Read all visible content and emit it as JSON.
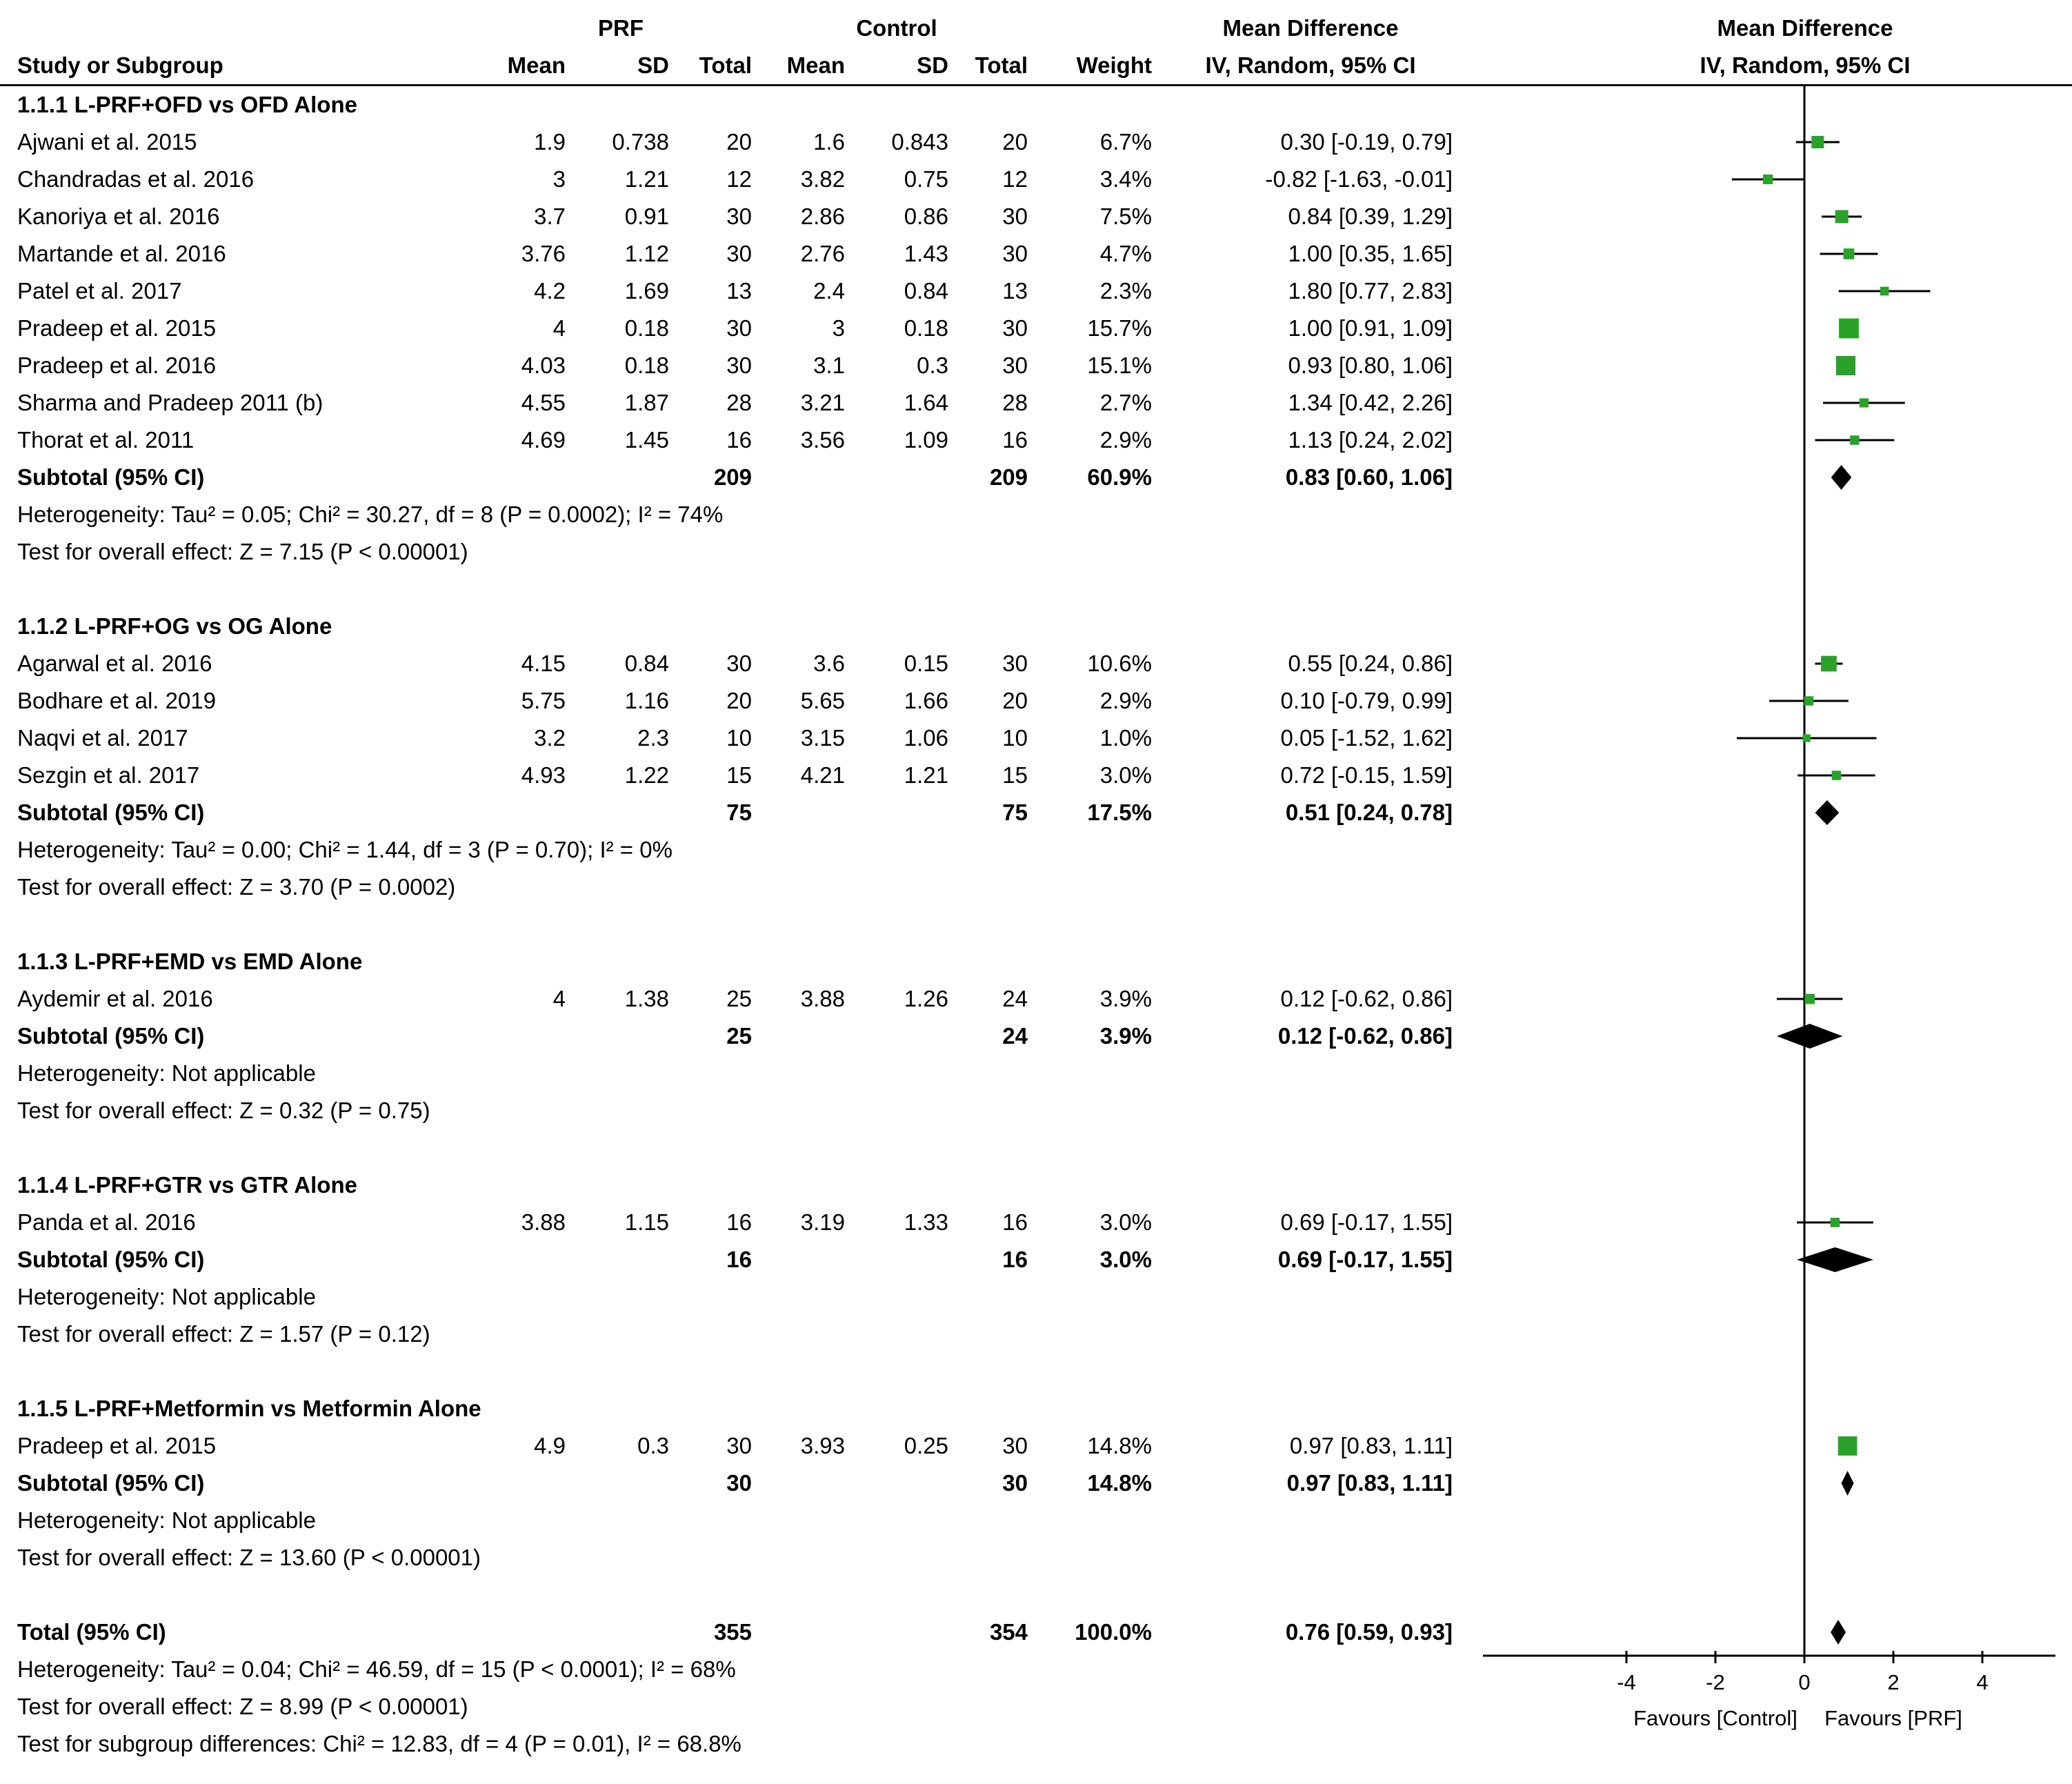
{
  "header": {
    "prf": "PRF",
    "control": "Control",
    "study": "Study or Subgroup",
    "mean": "Mean",
    "sd": "SD",
    "total": "Total",
    "weight": "Weight",
    "md_line1": "Mean Difference",
    "md_line2": "IV, Random, 95% CI"
  },
  "chart_data": {
    "type": "forest",
    "effect_measure": "Mean Difference",
    "method": "IV, Random, 95% CI",
    "marker_color": "#2aa22a",
    "diamond_color": "#000000",
    "xlim": [
      -5,
      5.6
    ],
    "axis": {
      "tick_values": [
        -4,
        -2,
        0,
        2,
        4
      ],
      "tick_labels": [
        "-4",
        "-2",
        "0",
        "2",
        "4"
      ],
      "favours_left": "Favours [Control]",
      "favours_right": "Favours [PRF]"
    },
    "groups": [
      {
        "label": "1.1.1 L-PRF+OFD vs OFD Alone",
        "studies": [
          {
            "name": "Ajwani et al. 2015",
            "prf_mean": "1.9",
            "prf_sd": "0.738",
            "prf_total": "20",
            "ctl_mean": "1.6",
            "ctl_sd": "0.843",
            "ctl_total": "20",
            "weight": "6.7%",
            "ci_text": "0.30 [-0.19, 0.79]",
            "est": 0.3,
            "lo": -0.19,
            "hi": 0.79,
            "w": 6.7
          },
          {
            "name": "Chandradas et al. 2016",
            "prf_mean": "3",
            "prf_sd": "1.21",
            "prf_total": "12",
            "ctl_mean": "3.82",
            "ctl_sd": "0.75",
            "ctl_total": "12",
            "weight": "3.4%",
            "ci_text": "-0.82 [-1.63, -0.01]",
            "est": -0.82,
            "lo": -1.63,
            "hi": -0.01,
            "w": 3.4
          },
          {
            "name": "Kanoriya et al. 2016",
            "prf_mean": "3.7",
            "prf_sd": "0.91",
            "prf_total": "30",
            "ctl_mean": "2.86",
            "ctl_sd": "0.86",
            "ctl_total": "30",
            "weight": "7.5%",
            "ci_text": "0.84 [0.39, 1.29]",
            "est": 0.84,
            "lo": 0.39,
            "hi": 1.29,
            "w": 7.5
          },
          {
            "name": "Martande et al. 2016",
            "prf_mean": "3.76",
            "prf_sd": "1.12",
            "prf_total": "30",
            "ctl_mean": "2.76",
            "ctl_sd": "1.43",
            "ctl_total": "30",
            "weight": "4.7%",
            "ci_text": "1.00 [0.35, 1.65]",
            "est": 1.0,
            "lo": 0.35,
            "hi": 1.65,
            "w": 4.7
          },
          {
            "name": "Patel et al. 2017",
            "prf_mean": "4.2",
            "prf_sd": "1.69",
            "prf_total": "13",
            "ctl_mean": "2.4",
            "ctl_sd": "0.84",
            "ctl_total": "13",
            "weight": "2.3%",
            "ci_text": "1.80 [0.77, 2.83]",
            "est": 1.8,
            "lo": 0.77,
            "hi": 2.83,
            "w": 2.3
          },
          {
            "name": "Pradeep et al. 2015",
            "prf_mean": "4",
            "prf_sd": "0.18",
            "prf_total": "30",
            "ctl_mean": "3",
            "ctl_sd": "0.18",
            "ctl_total": "30",
            "weight": "15.7%",
            "ci_text": "1.00 [0.91, 1.09]",
            "est": 1.0,
            "lo": 0.91,
            "hi": 1.09,
            "w": 15.7
          },
          {
            "name": "Pradeep et al. 2016",
            "prf_mean": "4.03",
            "prf_sd": "0.18",
            "prf_total": "30",
            "ctl_mean": "3.1",
            "ctl_sd": "0.3",
            "ctl_total": "30",
            "weight": "15.1%",
            "ci_text": "0.93 [0.80, 1.06]",
            "est": 0.93,
            "lo": 0.8,
            "hi": 1.06,
            "w": 15.1
          },
          {
            "name": "Sharma and Pradeep 2011 (b)",
            "prf_mean": "4.55",
            "prf_sd": "1.87",
            "prf_total": "28",
            "ctl_mean": "3.21",
            "ctl_sd": "1.64",
            "ctl_total": "28",
            "weight": "2.7%",
            "ci_text": "1.34 [0.42, 2.26]",
            "est": 1.34,
            "lo": 0.42,
            "hi": 2.26,
            "w": 2.7
          },
          {
            "name": "Thorat et al. 2011",
            "prf_mean": "4.69",
            "prf_sd": "1.45",
            "prf_total": "16",
            "ctl_mean": "3.56",
            "ctl_sd": "1.09",
            "ctl_total": "16",
            "weight": "2.9%",
            "ci_text": "1.13 [0.24, 2.02]",
            "est": 1.13,
            "lo": 0.24,
            "hi": 2.02,
            "w": 2.9
          }
        ],
        "subtotal": {
          "label": "Subtotal (95% CI)",
          "prf_total": "209",
          "ctl_total": "209",
          "weight": "60.9%",
          "ci_text": "0.83 [0.60, 1.06]",
          "est": 0.83,
          "lo": 0.6,
          "hi": 1.06
        },
        "heterogeneity": "Heterogeneity: Tau² = 0.05; Chi² = 30.27, df = 8 (P = 0.0002); I² = 74%",
        "effect_test": "Test for overall effect: Z = 7.15 (P < 0.00001)"
      },
      {
        "label": "1.1.2 L-PRF+OG vs OG Alone",
        "studies": [
          {
            "name": "Agarwal et al. 2016",
            "prf_mean": "4.15",
            "prf_sd": "0.84",
            "prf_total": "30",
            "ctl_mean": "3.6",
            "ctl_sd": "0.15",
            "ctl_total": "30",
            "weight": "10.6%",
            "ci_text": "0.55 [0.24, 0.86]",
            "est": 0.55,
            "lo": 0.24,
            "hi": 0.86,
            "w": 10.6
          },
          {
            "name": "Bodhare et al. 2019",
            "prf_mean": "5.75",
            "prf_sd": "1.16",
            "prf_total": "20",
            "ctl_mean": "5.65",
            "ctl_sd": "1.66",
            "ctl_total": "20",
            "weight": "2.9%",
            "ci_text": "0.10 [-0.79, 0.99]",
            "est": 0.1,
            "lo": -0.79,
            "hi": 0.99,
            "w": 2.9
          },
          {
            "name": "Naqvi et al. 2017",
            "prf_mean": "3.2",
            "prf_sd": "2.3",
            "prf_total": "10",
            "ctl_mean": "3.15",
            "ctl_sd": "1.06",
            "ctl_total": "10",
            "weight": "1.0%",
            "ci_text": "0.05 [-1.52, 1.62]",
            "est": 0.05,
            "lo": -1.52,
            "hi": 1.62,
            "w": 1.0
          },
          {
            "name": "Sezgin et al. 2017",
            "prf_mean": "4.93",
            "prf_sd": "1.22",
            "prf_total": "15",
            "ctl_mean": "4.21",
            "ctl_sd": "1.21",
            "ctl_total": "15",
            "weight": "3.0%",
            "ci_text": "0.72 [-0.15, 1.59]",
            "est": 0.72,
            "lo": -0.15,
            "hi": 1.59,
            "w": 3.0
          }
        ],
        "subtotal": {
          "label": "Subtotal (95% CI)",
          "prf_total": "75",
          "ctl_total": "75",
          "weight": "17.5%",
          "ci_text": "0.51 [0.24, 0.78]",
          "est": 0.51,
          "lo": 0.24,
          "hi": 0.78
        },
        "heterogeneity": "Heterogeneity: Tau² = 0.00; Chi² = 1.44, df = 3 (P = 0.70); I² = 0%",
        "effect_test": "Test for overall effect: Z = 3.70 (P = 0.0002)"
      },
      {
        "label": "1.1.3 L-PRF+EMD vs EMD Alone",
        "studies": [
          {
            "name": "Aydemir et al. 2016",
            "prf_mean": "4",
            "prf_sd": "1.38",
            "prf_total": "25",
            "ctl_mean": "3.88",
            "ctl_sd": "1.26",
            "ctl_total": "24",
            "weight": "3.9%",
            "ci_text": "0.12 [-0.62, 0.86]",
            "est": 0.12,
            "lo": -0.62,
            "hi": 0.86,
            "w": 3.9
          }
        ],
        "subtotal": {
          "label": "Subtotal (95% CI)",
          "prf_total": "25",
          "ctl_total": "24",
          "weight": "3.9%",
          "ci_text": "0.12 [-0.62, 0.86]",
          "est": 0.12,
          "lo": -0.62,
          "hi": 0.86
        },
        "heterogeneity": "Heterogeneity: Not applicable",
        "effect_test": "Test for overall effect: Z = 0.32 (P = 0.75)"
      },
      {
        "label": "1.1.4 L-PRF+GTR vs GTR Alone",
        "studies": [
          {
            "name": "Panda et al. 2016",
            "prf_mean": "3.88",
            "prf_sd": "1.15",
            "prf_total": "16",
            "ctl_mean": "3.19",
            "ctl_sd": "1.33",
            "ctl_total": "16",
            "weight": "3.0%",
            "ci_text": "0.69 [-0.17, 1.55]",
            "est": 0.69,
            "lo": -0.17,
            "hi": 1.55,
            "w": 3.0
          }
        ],
        "subtotal": {
          "label": "Subtotal (95% CI)",
          "prf_total": "16",
          "ctl_total": "16",
          "weight": "3.0%",
          "ci_text": "0.69 [-0.17, 1.55]",
          "est": 0.69,
          "lo": -0.17,
          "hi": 1.55
        },
        "heterogeneity": "Heterogeneity: Not applicable",
        "effect_test": "Test for overall effect: Z = 1.57 (P = 0.12)"
      },
      {
        "label": "1.1.5 L-PRF+Metformin vs Metformin Alone",
        "studies": [
          {
            "name": "Pradeep et al. 2015",
            "prf_mean": "4.9",
            "prf_sd": "0.3",
            "prf_total": "30",
            "ctl_mean": "3.93",
            "ctl_sd": "0.25",
            "ctl_total": "30",
            "weight": "14.8%",
            "ci_text": "0.97 [0.83, 1.11]",
            "est": 0.97,
            "lo": 0.83,
            "hi": 1.11,
            "w": 14.8
          }
        ],
        "subtotal": {
          "label": "Subtotal (95% CI)",
          "prf_total": "30",
          "ctl_total": "30",
          "weight": "14.8%",
          "ci_text": "0.97 [0.83, 1.11]",
          "est": 0.97,
          "lo": 0.83,
          "hi": 1.11
        },
        "heterogeneity": "Heterogeneity: Not applicable",
        "effect_test": "Test for overall effect: Z = 13.60 (P < 0.00001)"
      }
    ],
    "total": {
      "label": "Total (95% CI)",
      "prf_total": "355",
      "ctl_total": "354",
      "weight": "100.0%",
      "ci_text": "0.76 [0.59, 0.93]",
      "est": 0.76,
      "lo": 0.59,
      "hi": 0.93,
      "heterogeneity": "Heterogeneity: Tau² = 0.04; Chi² = 46.59, df = 15 (P < 0.0001); I² = 68%",
      "effect_test": "Test for overall effect: Z = 8.99 (P < 0.00001)",
      "subgroup_test": "Test for subgroup differences: Chi² = 12.83, df = 4 (P = 0.01), I² = 68.8%"
    }
  }
}
